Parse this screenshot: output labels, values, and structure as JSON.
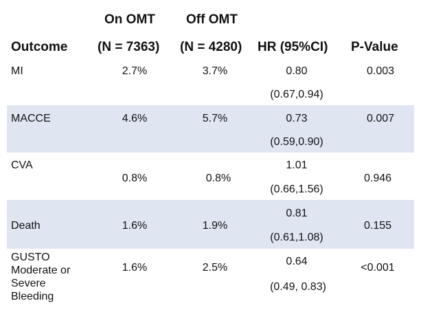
{
  "header": {
    "outcome": "Outcome",
    "on_omt_line1": "On OMT",
    "on_omt_line2": "(N = 7363)",
    "off_omt_line1": "Off OMT",
    "off_omt_line2": "(N = 4280)",
    "hr": "HR (95%CI)",
    "pvalue": "P-Value"
  },
  "rows": [
    {
      "outcome": "MI",
      "on": "2.7%",
      "off": "3.7%",
      "hr": "0.80",
      "ci": "(0.67,0.94)",
      "p": "0.003"
    },
    {
      "outcome": "MACCE",
      "on": "4.6%",
      "off": "5.7%",
      "hr": "0.73",
      "ci": "(0.59,0.90)",
      "p": "0.007"
    },
    {
      "outcome": "CVA",
      "on": "0.8%",
      "off": "0.8%",
      "hr": "1.01",
      "ci": "(0.66,1.56)",
      "p": "0.946"
    },
    {
      "outcome": "Death",
      "on": "1.6%",
      "off": "1.9%",
      "hr": "0.81",
      "ci": "(0.61,1.08)",
      "p": "0.155"
    },
    {
      "outcome_lines": [
        "GUSTO",
        "Moderate or",
        "Severe",
        "Bleeding"
      ],
      "on": "1.6%",
      "off": "2.5%",
      "hr": "0.64",
      "ci": "(0.49, 0.83)",
      "p": "<0.001"
    }
  ]
}
